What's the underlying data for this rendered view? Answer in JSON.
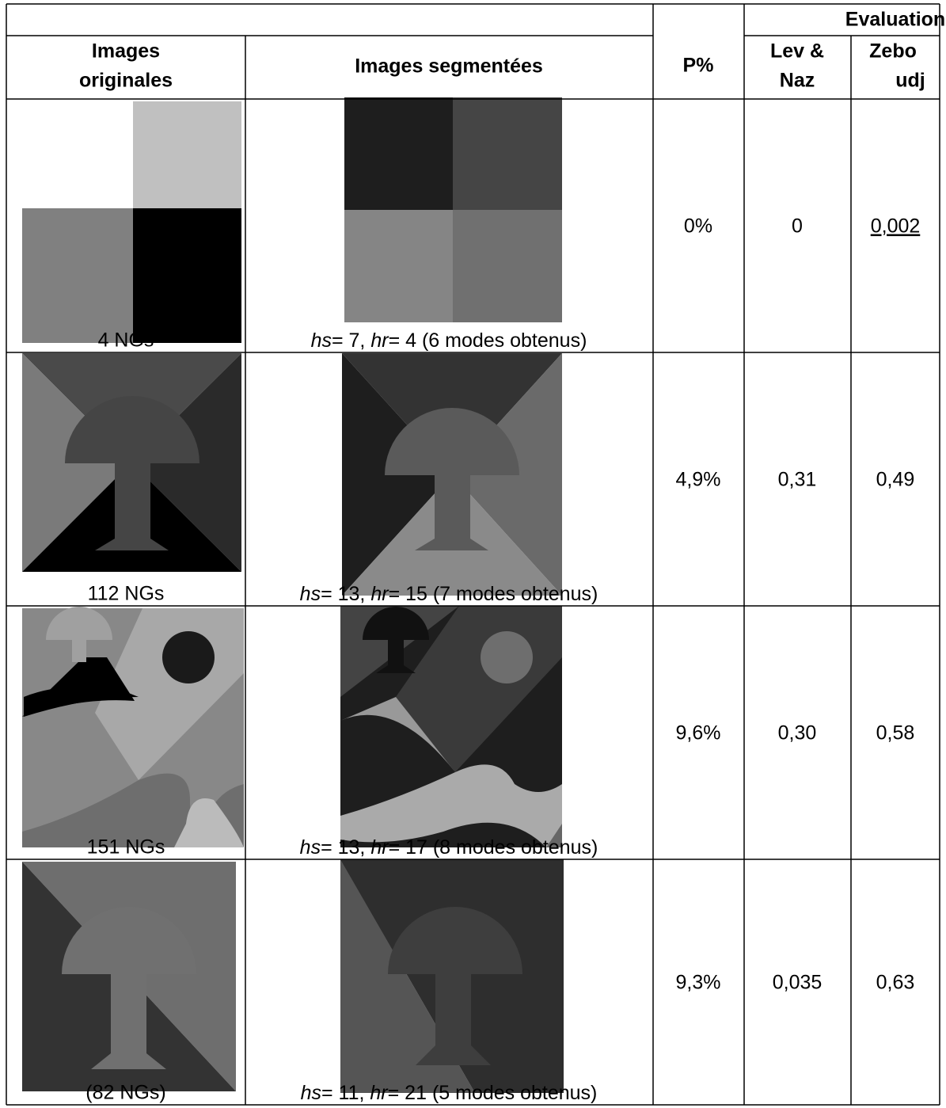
{
  "header": {
    "evaluation": "Evaluation",
    "col_original": [
      "Images",
      "originales"
    ],
    "col_segmented": "Images segmentées",
    "col_p": "P%",
    "col_levnaz": [
      "Lev &",
      "Naz"
    ],
    "col_zebo": [
      "Zebo",
      "udj"
    ]
  },
  "rows": [
    {
      "original_caption": "4 NGs",
      "hs_label": "hs",
      "hs_value": "= 7, ",
      "hr_label": "hr",
      "hr_value": "= 4 (6 modes obtenus)",
      "p": "0%",
      "lev_naz": "0",
      "zebo": "0,002"
    },
    {
      "original_caption": "112 NGs",
      "hs_label": "hs",
      "hs_value": "= 13, ",
      "hr_label": "hr",
      "hr_value": "= 15 (7 modes obtenus)",
      "p": "4,9%",
      "lev_naz": "0,31",
      "zebo": "0,49"
    },
    {
      "original_caption": "151 NGs",
      "hs_label": "hs",
      "hs_value": "= 13, ",
      "hr_label": "hr",
      "hr_value": "= 17 (8 modes obtenus)",
      "p": "9,6%",
      "lev_naz": "0,30",
      "zebo": "0,58"
    },
    {
      "original_caption": "(82 NGs)",
      "hs_label": "hs",
      "hs_value": "= 11, ",
      "hr_label": "hr",
      "hr_value": "= 21 (5 modes obtenus)",
      "p": "9,3%",
      "lev_naz": "0,035",
      "zebo": "0,63"
    }
  ]
}
